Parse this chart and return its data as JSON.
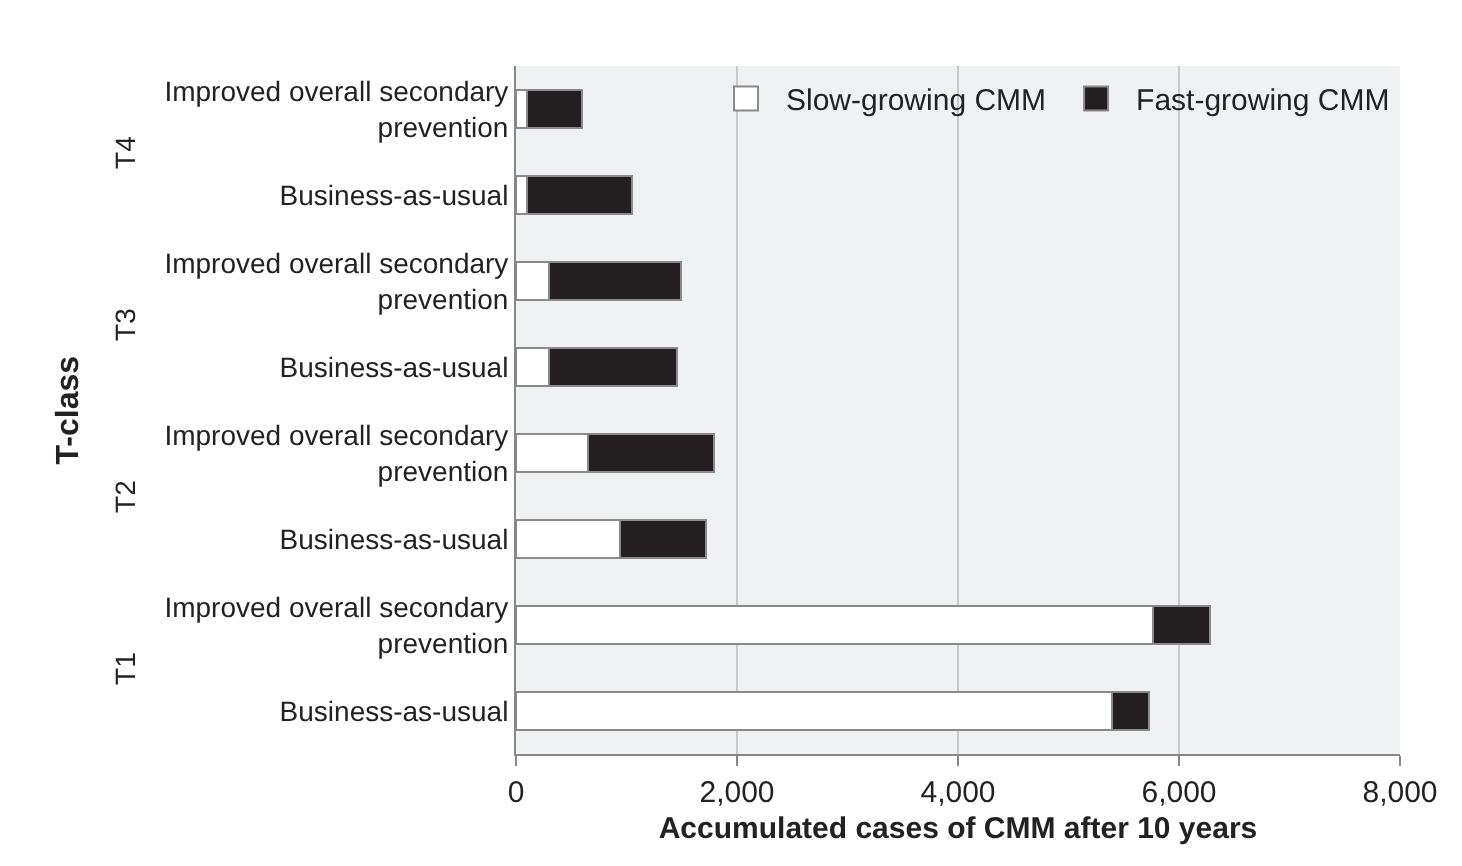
{
  "chart_data": {
    "type": "bar",
    "orientation": "horizontal",
    "stacked": true,
    "xlabel": "Accumulated cases of CMM after 10 years",
    "ylabel": "T-class",
    "categories": [
      "Improved overall secondary prevention",
      "Business-as-usual",
      "Improved overall secondary prevention",
      "Business-as-usual",
      "Improved overall secondary prevention",
      "Business-as-usual",
      "Improved overall secondary prevention",
      "Business-as-usual"
    ],
    "series": [
      {
        "name": "Slow-growing CMM",
        "color": "#ffffff",
        "values": [
          100,
          100,
          300,
          300,
          650,
          940,
          5765,
          5390
        ]
      },
      {
        "name": "Fast-growing CMM",
        "color": "#231f20",
        "values": [
          500,
          950,
          1190,
          1160,
          1140,
          775,
          515,
          340
        ]
      }
    ],
    "annotations": [
      "T4",
      "T3",
      "T2",
      "T1"
    ],
    "xlim": [
      0,
      8000
    ],
    "xticks": [
      {
        "value": 0,
        "label": "0"
      },
      {
        "value": 2000,
        "label": "2,000"
      },
      {
        "value": 4000,
        "label": "4,000"
      },
      {
        "value": 6000,
        "label": "6,000"
      },
      {
        "value": 8000,
        "label": "8,000"
      }
    ],
    "grid": "x",
    "legend": "top right"
  }
}
